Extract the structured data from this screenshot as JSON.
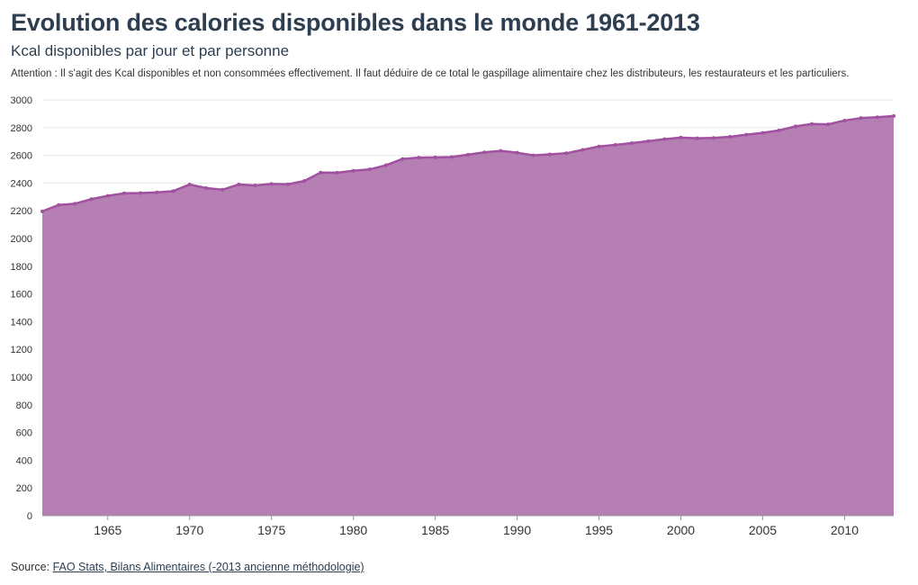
{
  "header": {
    "title": "Evolution des calories disponibles dans le monde 1961-2013",
    "subtitle": "Kcal disponibles par jour et par personne",
    "note": "Attention : Il s'agit des Kcal disponibles et non consommées effectivement. Il faut déduire de ce total le gaspillage alimentaire chez les distributeurs, les restaurateurs et les particuliers."
  },
  "footer": {
    "source_prefix": "Source: ",
    "source_link": "FAO Stats, Bilans Alimentaires (-2013 ancienne méthodologie)"
  },
  "colors": {
    "area_fill": "#b57fb4",
    "line": "#a0519f",
    "grid": "#e8e8e8"
  },
  "chart_data": {
    "type": "area",
    "title": "Evolution des calories disponibles dans le monde 1961-2013",
    "subtitle": "Kcal disponibles par jour et par personne",
    "xlabel": "",
    "ylabel": "",
    "xlim": [
      1961,
      2013
    ],
    "ylim": [
      0,
      3000
    ],
    "xticks": [
      1965,
      1970,
      1975,
      1980,
      1985,
      1990,
      1995,
      2000,
      2005,
      2010
    ],
    "yticks": [
      0,
      200,
      400,
      600,
      800,
      1000,
      1200,
      1400,
      1600,
      1800,
      2000,
      2200,
      2400,
      2600,
      2800,
      3000
    ],
    "grid": true,
    "x": [
      1961,
      1962,
      1963,
      1964,
      1965,
      1966,
      1967,
      1968,
      1969,
      1970,
      1971,
      1972,
      1973,
      1974,
      1975,
      1976,
      1977,
      1978,
      1979,
      1980,
      1981,
      1982,
      1983,
      1984,
      1985,
      1986,
      1987,
      1988,
      1989,
      1990,
      1991,
      1992,
      1993,
      1994,
      1995,
      1996,
      1997,
      1998,
      1999,
      2000,
      2001,
      2002,
      2003,
      2004,
      2005,
      2006,
      2007,
      2008,
      2009,
      2010,
      2011,
      2012,
      2013
    ],
    "values": [
      2196,
      2242,
      2251,
      2284,
      2308,
      2326,
      2328,
      2333,
      2342,
      2390,
      2364,
      2352,
      2390,
      2383,
      2394,
      2391,
      2415,
      2476,
      2475,
      2489,
      2499,
      2529,
      2574,
      2584,
      2585,
      2588,
      2605,
      2622,
      2632,
      2619,
      2600,
      2607,
      2615,
      2640,
      2664,
      2675,
      2688,
      2702,
      2717,
      2728,
      2723,
      2726,
      2734,
      2749,
      2762,
      2780,
      2809,
      2826,
      2824,
      2851,
      2869,
      2875,
      2884
    ]
  }
}
